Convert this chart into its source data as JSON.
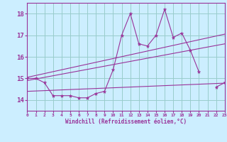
{
  "background_color": "#cceeff",
  "grid_color": "#99cccc",
  "line_color": "#993399",
  "xlabel": "Windchill (Refroidissement éolien,°C)",
  "xlim": [
    0,
    23
  ],
  "ylim": [
    13.5,
    18.5
  ],
  "yticks": [
    14,
    15,
    16,
    17,
    18
  ],
  "xticks": [
    0,
    1,
    2,
    3,
    4,
    5,
    6,
    7,
    8,
    9,
    10,
    11,
    12,
    13,
    14,
    15,
    16,
    17,
    18,
    19,
    20,
    21,
    22,
    23
  ],
  "series1": {
    "x": [
      0,
      1,
      2,
      3,
      4,
      5,
      6,
      7,
      8,
      9,
      10,
      11,
      12,
      13,
      14,
      15,
      16,
      17,
      18,
      19,
      20,
      21,
      22,
      23
    ],
    "y": [
      15.0,
      15.0,
      14.8,
      14.2,
      14.2,
      14.2,
      14.1,
      14.1,
      14.3,
      14.4,
      15.4,
      17.0,
      18.0,
      16.6,
      16.5,
      17.0,
      18.2,
      16.9,
      17.1,
      16.3,
      15.3,
      null,
      14.6,
      14.8
    ]
  },
  "series2_linear": {
    "x": [
      0,
      23
    ],
    "y": [
      14.9,
      16.6
    ]
  },
  "series3_linear": {
    "x": [
      0,
      23
    ],
    "y": [
      15.05,
      17.05
    ]
  },
  "series4_linear": {
    "x": [
      0,
      23
    ],
    "y": [
      14.4,
      14.78
    ]
  }
}
